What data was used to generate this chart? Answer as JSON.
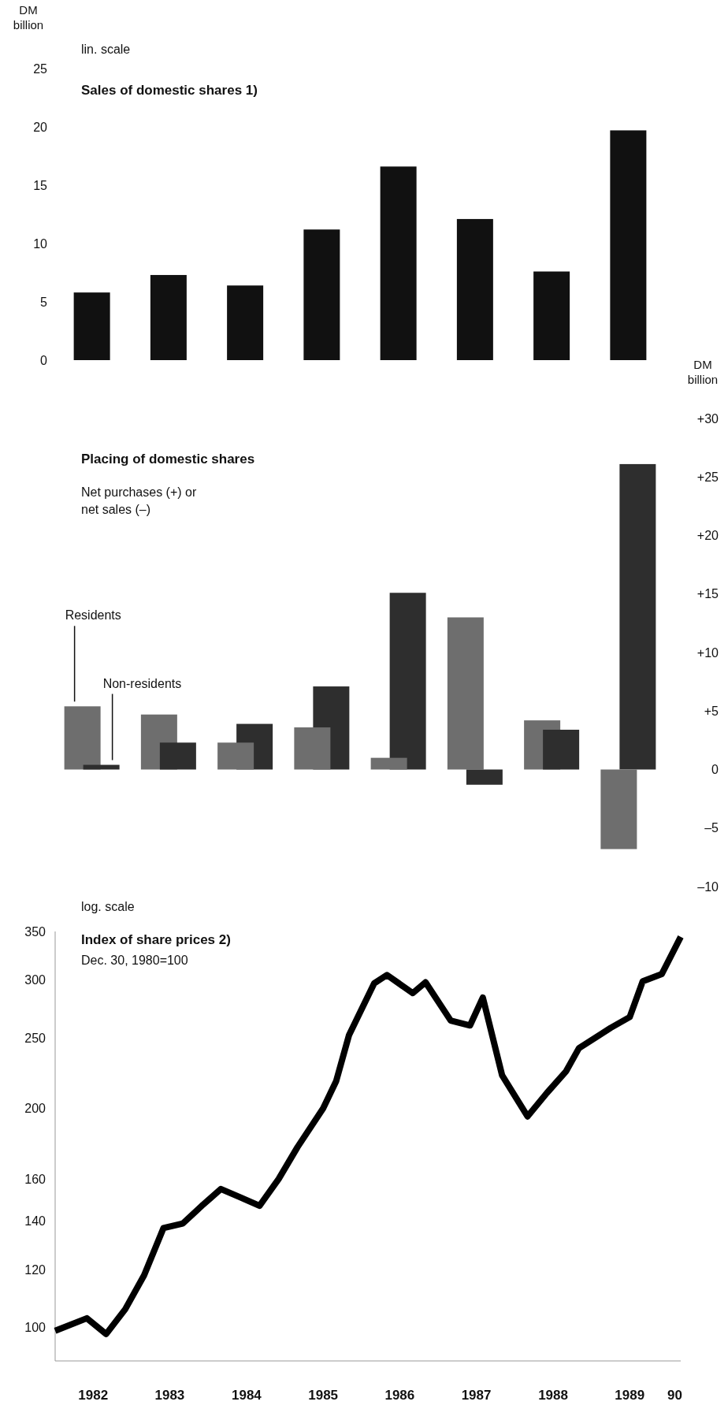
{
  "chart_data": [
    {
      "type": "bar",
      "title": "Sales of domestic shares 1)",
      "ylabel": "DM billion",
      "annotations": [
        "lin. scale"
      ],
      "categories": [
        null,
        null,
        null,
        null,
        null,
        null,
        null,
        null
      ],
      "values": [
        5.8,
        7.3,
        6.4,
        11.2,
        16.6,
        12.1,
        7.6,
        19.7
      ],
      "color": "#111111",
      "ylim": [
        0,
        25
      ],
      "yticks": [
        0,
        5,
        10,
        15,
        20,
        25
      ],
      "tick_labels": "y"
    },
    {
      "type": "bar",
      "title": "Placing of domestic shares",
      "subtitle": "Net purchases (+) or net sales (–)",
      "ylabel": "DM billion",
      "categories": [
        null,
        null,
        null,
        null,
        null,
        null,
        null,
        null
      ],
      "series": [
        {
          "name": "Residents",
          "color": "#6e6e6e",
          "values": [
            5.4,
            4.7,
            2.3,
            3.6,
            1.0,
            13.0,
            4.2,
            -6.8
          ]
        },
        {
          "name": "Non-residents",
          "color": "#2e2e2e",
          "values": [
            0.4,
            2.3,
            3.9,
            7.1,
            15.1,
            -1.3,
            3.4,
            26.1
          ]
        }
      ],
      "ylim": [
        -10,
        30
      ],
      "yticks": [
        {
          "value": 30,
          "label": "+30"
        },
        {
          "value": 25,
          "label": "+25"
        },
        {
          "value": 20,
          "label": "+20"
        },
        {
          "value": 15,
          "label": "+15"
        },
        {
          "value": 10,
          "label": "+10"
        },
        {
          "value": 5,
          "label": "+5"
        },
        0,
        {
          "value": -5,
          "label": "–5"
        },
        {
          "value": -10,
          "label": "–10"
        }
      ],
      "tick_labels": "y"
    },
    {
      "type": "line",
      "title": "Index of share prices 2)",
      "subtitle": "Dec. 30, 1980=100",
      "annotations": [
        "log. scale"
      ],
      "log": true,
      "x": [
        "1982-01",
        "1982-06",
        "1982-09",
        "1982-12",
        "1983-03",
        "1983-06",
        "1983-09",
        "1983-12",
        "1984-03",
        "1984-06",
        "1984-09",
        "1984-12",
        "1985-03",
        "1985-07",
        "1985-09",
        "1985-11",
        "1986-03",
        "1986-05",
        "1986-09",
        "1986-11",
        "1987-03",
        "1987-06",
        "1987-08",
        "1987-11",
        "1988-03",
        "1988-06",
        "1988-09",
        "1988-11",
        "1989-04",
        "1989-07",
        "1989-09",
        "1989-12",
        "1990-03"
      ],
      "values": [
        99,
        103,
        98,
        106,
        118,
        137,
        139,
        147,
        155,
        151,
        147,
        160,
        177,
        200,
        218,
        252,
        297,
        305,
        288,
        298,
        264,
        260,
        284,
        222,
        195,
        210,
        225,
        242,
        258,
        267,
        299,
        306,
        344
      ],
      "color": "#000000",
      "xlim": [
        "1982-01",
        "1990-03"
      ],
      "xticks": [
        {
          "value": "1982-07",
          "label": "1982"
        },
        {
          "value": "1983-07",
          "label": "1983"
        },
        {
          "value": "1984-07",
          "label": "1984"
        },
        {
          "value": "1985-07",
          "label": "1985"
        },
        {
          "value": "1986-07",
          "label": "1986"
        },
        {
          "value": "1987-07",
          "label": "1987"
        },
        {
          "value": "1988-07",
          "label": "1988"
        },
        {
          "value": "1989-07",
          "label": "1989"
        },
        {
          "value": "1990-02",
          "label": "90"
        }
      ],
      "ylim": [
        90,
        350
      ],
      "yticks": [
        100,
        120,
        140,
        160,
        200,
        250,
        300,
        350
      ]
    }
  ]
}
